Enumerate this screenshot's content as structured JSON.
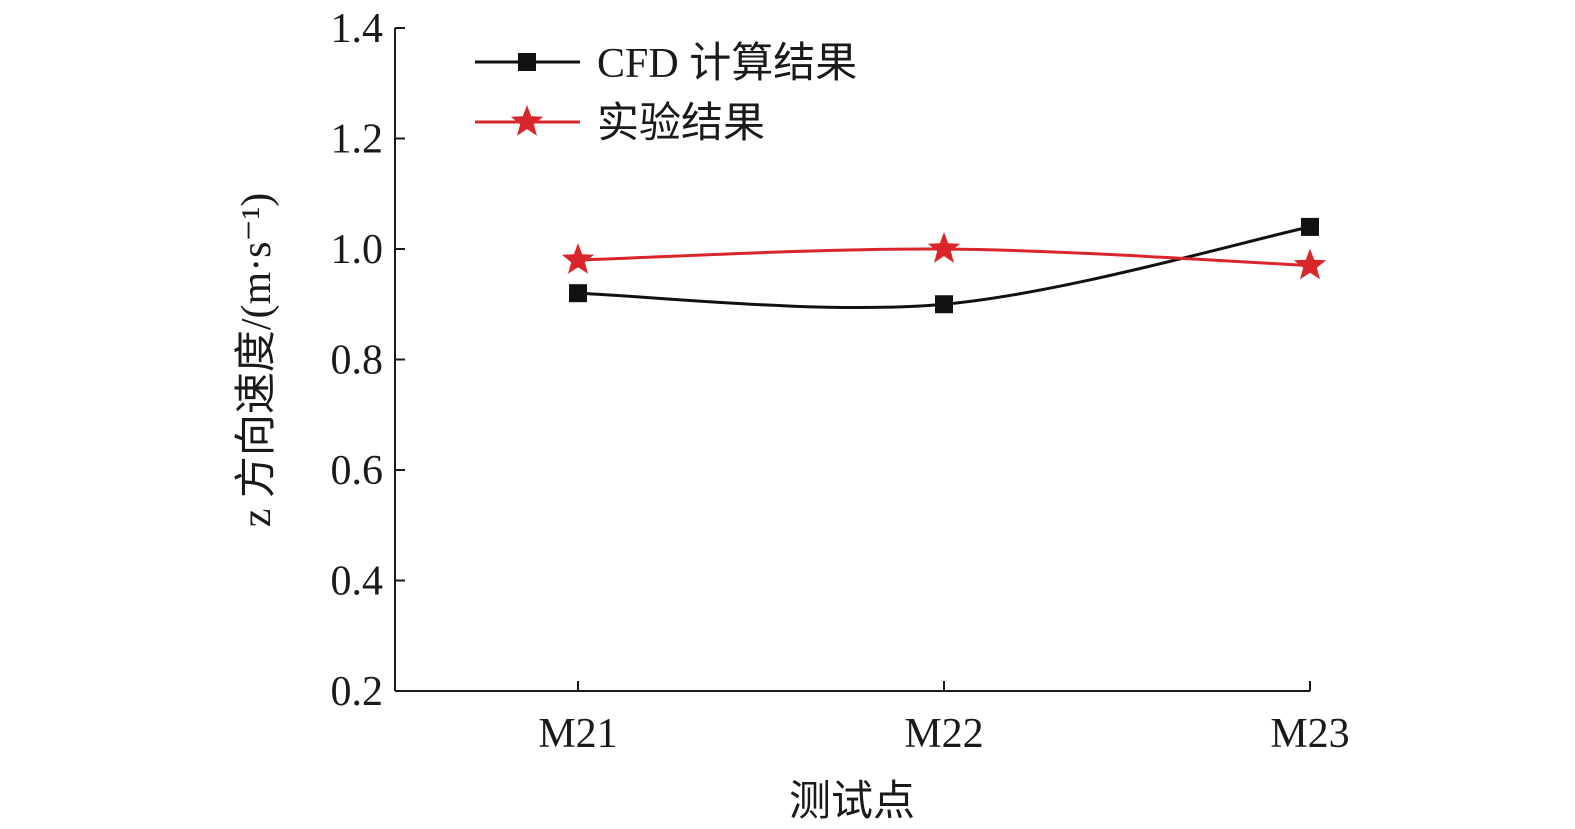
{
  "chart_data": {
    "type": "line",
    "title": "",
    "xlabel": "测试点",
    "ylabel": "z 方向速度/(m·s⁻¹)",
    "categories": [
      "M21",
      "M22",
      "M23"
    ],
    "ylim": [
      0.2,
      1.4
    ],
    "yticks": [
      "0.2",
      "0.4",
      "0.6",
      "0.8",
      "1.0",
      "1.2",
      "1.4"
    ],
    "grid": false,
    "legend_position": "top-left",
    "smooth": true,
    "series": [
      {
        "name": "CFD 计算结果",
        "values": [
          0.92,
          0.9,
          1.04
        ],
        "color": "#111111",
        "marker": "square"
      },
      {
        "name": "实验结果",
        "values": [
          0.98,
          1.0,
          0.97
        ],
        "color": "#d9262b",
        "marker": "star"
      }
    ]
  }
}
